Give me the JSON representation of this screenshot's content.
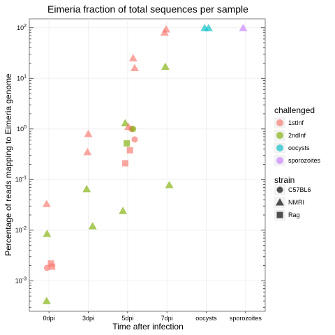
{
  "chart_data": {
    "type": "scatter",
    "title": "Eimeria fraction of total sequences per sample",
    "xlabel": "Time after infection",
    "ylabel": "Percentage of reads mapping to Eimeria genome",
    "y_scale": "log10",
    "ylim": [
      0.00025,
      150
    ],
    "grid": true,
    "legend_placement": "right",
    "x_categories": [
      "0dpi",
      "3dpi",
      "5dpi",
      "7dpi",
      "oocysts",
      "sporozoites"
    ],
    "y_ticks": [
      {
        "value": 0.001,
        "base": "10",
        "exp": "-3"
      },
      {
        "value": 0.01,
        "base": "10",
        "exp": "-2"
      },
      {
        "value": 0.1,
        "base": "10",
        "exp": "-1"
      },
      {
        "value": 1,
        "base": "10",
        "exp": "0"
      },
      {
        "value": 10,
        "base": "10",
        "exp": "1"
      },
      {
        "value": 100,
        "base": "10",
        "exp": "2"
      }
    ],
    "legends": {
      "challenged": {
        "title": "challenged",
        "entries": [
          {
            "label": "1stInf",
            "color": "#F8766D"
          },
          {
            "label": "2ndInf",
            "color": "#7CAE00"
          },
          {
            "label": "oocysts",
            "color": "#00BFC4"
          },
          {
            "label": "sporozoites",
            "color": "#C77CFF"
          }
        ]
      },
      "strain": {
        "title": "strain",
        "entries": [
          {
            "label": "C57BL6",
            "shape": "circle"
          },
          {
            "label": "NMRI",
            "shape": "triangle"
          },
          {
            "label": "Rag",
            "shape": "square"
          }
        ]
      }
    },
    "points": [
      {
        "x": "0dpi",
        "jitter": -0.06,
        "y": 0.033,
        "challenged": "1stInf",
        "strain": "NMRI"
      },
      {
        "x": "0dpi",
        "jitter": -0.05,
        "y": 0.0085,
        "challenged": "2ndInf",
        "strain": "NMRI"
      },
      {
        "x": "0dpi",
        "jitter": -0.06,
        "y": 0.0004,
        "challenged": "2ndInf",
        "strain": "NMRI"
      },
      {
        "x": "0dpi",
        "jitter": -0.05,
        "y": 0.0018,
        "challenged": "1stInf",
        "strain": "C57BL6"
      },
      {
        "x": "0dpi",
        "jitter": 0.05,
        "y": 0.0022,
        "challenged": "1stInf",
        "strain": "Rag"
      },
      {
        "x": "0dpi",
        "jitter": 0.08,
        "y": 0.0019,
        "challenged": "1stInf",
        "strain": "Rag"
      },
      {
        "x": "3dpi",
        "jitter": 0.0,
        "y": 0.8,
        "challenged": "1stInf",
        "strain": "NMRI"
      },
      {
        "x": "3dpi",
        "jitter": -0.02,
        "y": 0.35,
        "challenged": "1stInf",
        "strain": "NMRI"
      },
      {
        "x": "3dpi",
        "jitter": -0.04,
        "y": 0.065,
        "challenged": "2ndInf",
        "strain": "NMRI"
      },
      {
        "x": "3dpi",
        "jitter": 0.11,
        "y": 0.012,
        "challenged": "2ndInf",
        "strain": "NMRI"
      },
      {
        "x": "5dpi",
        "jitter": -0.06,
        "y": 1.3,
        "challenged": "2ndInf",
        "strain": "NMRI"
      },
      {
        "x": "5dpi",
        "jitter": 0.02,
        "y": 1.1,
        "challenged": "1stInf",
        "strain": "NMRI"
      },
      {
        "x": "5dpi",
        "jitter": 0.14,
        "y": 25,
        "challenged": "1stInf",
        "strain": "NMRI"
      },
      {
        "x": "5dpi",
        "jitter": 0.18,
        "y": 16,
        "challenged": "1stInf",
        "strain": "NMRI"
      },
      {
        "x": "5dpi",
        "jitter": -0.12,
        "y": 0.024,
        "challenged": "2ndInf",
        "strain": "NMRI"
      },
      {
        "x": "5dpi",
        "jitter": 0.1,
        "y": 1.0,
        "challenged": "1stInf",
        "strain": "C57BL6"
      },
      {
        "x": "5dpi",
        "jitter": 0.14,
        "y": 1.0,
        "challenged": "2ndInf",
        "strain": "C57BL6"
      },
      {
        "x": "5dpi",
        "jitter": 0.18,
        "y": 0.62,
        "challenged": "1stInf",
        "strain": "C57BL6"
      },
      {
        "x": "5dpi",
        "jitter": -0.02,
        "y": 0.52,
        "challenged": "2ndInf",
        "strain": "Rag"
      },
      {
        "x": "5dpi",
        "jitter": 0.06,
        "y": 0.38,
        "challenged": "1stInf",
        "strain": "Rag"
      },
      {
        "x": "5dpi",
        "jitter": -0.06,
        "y": 0.21,
        "challenged": "1stInf",
        "strain": "Rag"
      },
      {
        "x": "7dpi",
        "jitter": -0.06,
        "y": 80,
        "challenged": "1stInf",
        "strain": "NMRI"
      },
      {
        "x": "7dpi",
        "jitter": -0.02,
        "y": 93,
        "challenged": "1stInf",
        "strain": "NMRI"
      },
      {
        "x": "7dpi",
        "jitter": -0.04,
        "y": 17,
        "challenged": "2ndInf",
        "strain": "NMRI"
      },
      {
        "x": "7dpi",
        "jitter": 0.06,
        "y": 0.078,
        "challenged": "2ndInf",
        "strain": "NMRI"
      },
      {
        "x": "oocysts",
        "jitter": -0.04,
        "y": 99,
        "challenged": "oocysts",
        "strain": "NMRI"
      },
      {
        "x": "oocysts",
        "jitter": 0.06,
        "y": 99,
        "challenged": "oocysts",
        "strain": "NMRI"
      },
      {
        "x": "sporozoites",
        "jitter": -0.06,
        "y": 99,
        "challenged": "sporozoites",
        "strain": "NMRI"
      }
    ]
  }
}
